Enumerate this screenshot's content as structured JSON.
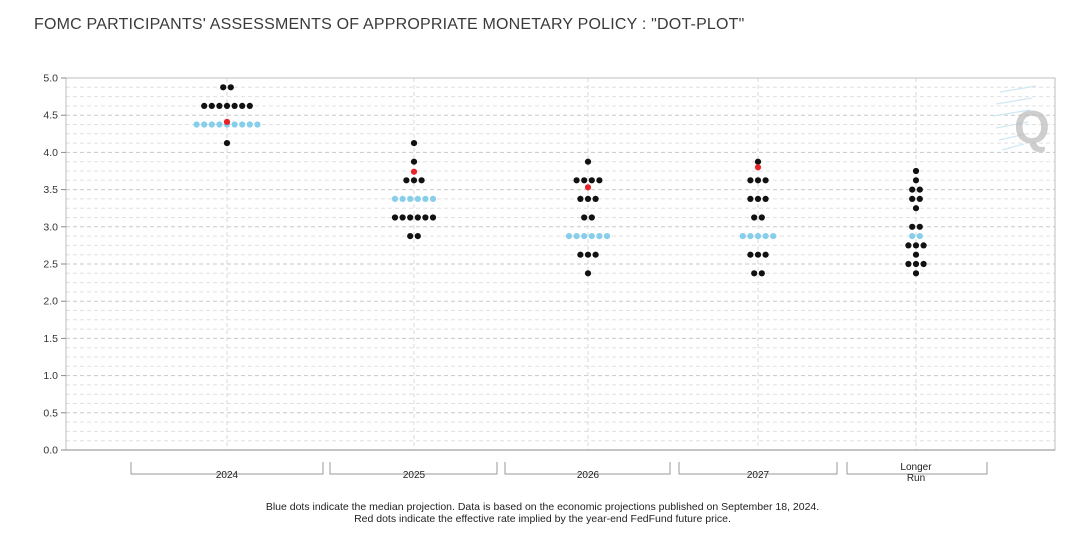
{
  "title": "FOMC PARTICIPANTS' ASSESSMENTS OF APPROPRIATE MONETARY POLICY : \"DOT-PLOT\"",
  "footnotes": [
    "Blue dots indicate the median projection. Data is based on the economic projections published on September 18, 2024.",
    "Red dots indicate the effective rate implied by the year-end FedFund future price."
  ],
  "watermark": "Q",
  "chart_data": {
    "type": "scatter",
    "subtype": "dot-plot",
    "ylim": [
      0,
      5.0
    ],
    "yticks": [
      "5.0",
      "4.5",
      "4.0",
      "3.5",
      "3.0",
      "2.5",
      "2.0",
      "1.5",
      "1.0",
      "0.5",
      "0.0"
    ],
    "ytick_values": [
      5.0,
      4.5,
      4.0,
      3.5,
      3.0,
      2.5,
      2.0,
      1.5,
      1.0,
      0.5,
      0.0
    ],
    "categories": [
      {
        "label": [
          "2024"
        ],
        "median": 4.375,
        "futures_implied": 4.41,
        "dots": [
          {
            "rate": 4.875,
            "count": 2
          },
          {
            "rate": 4.625,
            "count": 7
          },
          {
            "rate": 4.375,
            "count": 9
          },
          {
            "rate": 4.125,
            "count": 1
          }
        ]
      },
      {
        "label": [
          "2025"
        ],
        "median": 3.375,
        "futures_implied": 3.74,
        "dots": [
          {
            "rate": 4.125,
            "count": 1
          },
          {
            "rate": 3.875,
            "count": 1
          },
          {
            "rate": 3.625,
            "count": 3
          },
          {
            "rate": 3.375,
            "count": 6
          },
          {
            "rate": 3.125,
            "count": 6
          },
          {
            "rate": 2.875,
            "count": 2
          }
        ]
      },
      {
        "label": [
          "2026"
        ],
        "median": 2.875,
        "futures_implied": 3.53,
        "dots": [
          {
            "rate": 3.875,
            "count": 1
          },
          {
            "rate": 3.625,
            "count": 4
          },
          {
            "rate": 3.375,
            "count": 3
          },
          {
            "rate": 3.125,
            "count": 2
          },
          {
            "rate": 2.875,
            "count": 6
          },
          {
            "rate": 2.625,
            "count": 3
          },
          {
            "rate": 2.375,
            "count": 1
          }
        ]
      },
      {
        "label": [
          "2027"
        ],
        "median": 2.875,
        "futures_implied": 3.8,
        "dots": [
          {
            "rate": 3.875,
            "count": 1
          },
          {
            "rate": 3.625,
            "count": 3
          },
          {
            "rate": 3.375,
            "count": 3
          },
          {
            "rate": 3.125,
            "count": 2
          },
          {
            "rate": 2.875,
            "count": 5
          },
          {
            "rate": 2.625,
            "count": 3
          },
          {
            "rate": 2.375,
            "count": 2
          }
        ]
      },
      {
        "label": [
          "Longer",
          "Run"
        ],
        "median": 2.875,
        "futures_implied": null,
        "dots": [
          {
            "rate": 3.75,
            "count": 1
          },
          {
            "rate": 3.625,
            "count": 1
          },
          {
            "rate": 3.5,
            "count": 2
          },
          {
            "rate": 3.375,
            "count": 2
          },
          {
            "rate": 3.25,
            "count": 1
          },
          {
            "rate": 3.0,
            "count": 2
          },
          {
            "rate": 2.875,
            "count": 2
          },
          {
            "rate": 2.75,
            "count": 3
          },
          {
            "rate": 2.625,
            "count": 1
          },
          {
            "rate": 2.5,
            "count": 3
          },
          {
            "rate": 2.375,
            "count": 1
          }
        ]
      }
    ],
    "colors": {
      "dot": "#111111",
      "median": "#87ceeb",
      "futures": "#e8242a",
      "grid": "#d3d3d3",
      "axis": "#8a8a8a"
    }
  }
}
